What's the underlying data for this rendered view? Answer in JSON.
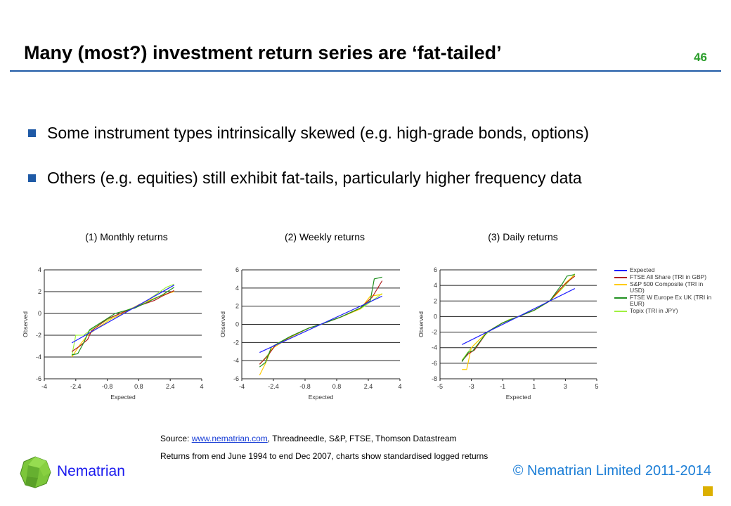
{
  "slide": {
    "title": "Many (most?) investment return series are ‘fat-tailed’",
    "page_number": "46",
    "bullets": [
      "Some instrument types intrinsically skewed (e.g. high-grade bonds, options)",
      "Others (e.g. equities) still exhibit fat-tails, particularly higher frequency data"
    ],
    "source_prefix": "Source: ",
    "source_link": "www.nematrian.com",
    "source_rest": ", Threadneedle, S&P, FTSE, Thomson Datastream",
    "note": "Returns from end June 1994 to end Dec 2007, charts show standardised logged returns",
    "brand": "Nematrian",
    "copyright": "© Nematrian Limited 2011-2014"
  },
  "colors": {
    "accent": "#1f5aa6",
    "Expected": "#2020ff",
    "FTSE All Share (TRI in GBP)": "#b02020",
    "S&P 500 Composite (TRI in USD)": "#ffcc00",
    "FTSE W Europe Ex UK (TRI in EUR)": "#209020",
    "Topix (TRI in JPY)": "#a0f040"
  },
  "chart_data": [
    {
      "type": "line",
      "title": "(1) Monthly returns",
      "xlabel": "Expected",
      "ylabel": "Observed",
      "xlim": [
        -4,
        4
      ],
      "ylim": [
        -6,
        4
      ],
      "xticks": [
        "-4",
        "-2.4",
        "-0.8",
        "0.8",
        "2.4",
        "4"
      ],
      "yticks": [
        "-6",
        "-4",
        "-2",
        "0",
        "2",
        "4"
      ],
      "series": [
        {
          "name": "Expected",
          "points": [
            [
              -2.6,
              -2.7
            ],
            [
              2.6,
              2.6
            ]
          ]
        },
        {
          "name": "FTSE All Share (TRI in GBP)",
          "points": [
            [
              -2.6,
              -3.5
            ],
            [
              -2.2,
              -3
            ],
            [
              -1.8,
              -2.4
            ],
            [
              -1.6,
              -1.6
            ],
            [
              -0.8,
              -0.5
            ],
            [
              0,
              0.1
            ],
            [
              0.8,
              0.7
            ],
            [
              1.6,
              1.2
            ],
            [
              2,
              1.6
            ],
            [
              2.6,
              2.1
            ]
          ]
        },
        {
          "name": "S&P 500 Composite (TRI in USD)",
          "points": [
            [
              -2.6,
              -4
            ],
            [
              -2.2,
              -2.9
            ],
            [
              -1.8,
              -2
            ],
            [
              -1.2,
              -1.2
            ],
            [
              -0.6,
              -0.5
            ],
            [
              0,
              0
            ],
            [
              0.8,
              0.8
            ],
            [
              1.6,
              1.4
            ],
            [
              2.2,
              1.8
            ],
            [
              2.6,
              2
            ]
          ]
        },
        {
          "name": "FTSE W Europe Ex UK (TRI in EUR)",
          "points": [
            [
              -2.6,
              -3.8
            ],
            [
              -2.3,
              -3.7
            ],
            [
              -2,
              -2.7
            ],
            [
              -1.7,
              -1.5
            ],
            [
              -1,
              -0.7
            ],
            [
              -0.4,
              0
            ],
            [
              0.6,
              0.5
            ],
            [
              1.2,
              1
            ],
            [
              2,
              1.7
            ],
            [
              2.6,
              2.4
            ]
          ]
        },
        {
          "name": "Topix (TRI in JPY)",
          "points": [
            [
              -2.6,
              -3.9
            ],
            [
              -2.4,
              -2
            ],
            [
              -2,
              -2
            ],
            [
              -1.4,
              -1.2
            ],
            [
              -0.6,
              -0.4
            ],
            [
              0.2,
              0.3
            ],
            [
              1,
              0.9
            ],
            [
              2.2,
              2.4
            ],
            [
              2.6,
              2.7
            ]
          ]
        }
      ]
    },
    {
      "type": "line",
      "title": "(2) Weekly returns",
      "xlabel": "Expected",
      "ylabel": "Observed",
      "xlim": [
        -4,
        4
      ],
      "ylim": [
        -6,
        6
      ],
      "xticks": [
        "-4",
        "-2.4",
        "-0.8",
        "0.8",
        "2.4",
        "4"
      ],
      "yticks": [
        "-6",
        "-4",
        "-2",
        "0",
        "2",
        "4",
        "6"
      ],
      "series": [
        {
          "name": "Expected",
          "points": [
            [
              -3.1,
              -3.1
            ],
            [
              3.1,
              3.1
            ]
          ]
        },
        {
          "name": "FTSE All Share (TRI in GBP)",
          "points": [
            [
              -3.1,
              -4.4
            ],
            [
              -2.7,
              -3.5
            ],
            [
              -2.3,
              -2.3
            ],
            [
              -1.5,
              -1.3
            ],
            [
              -0.6,
              -0.4
            ],
            [
              0,
              0
            ],
            [
              1,
              0.8
            ],
            [
              2,
              1.8
            ],
            [
              2.6,
              3
            ],
            [
              3.1,
              4.8
            ]
          ]
        },
        {
          "name": "S&P 500 Composite (TRI in USD)",
          "points": [
            [
              -3.1,
              -5.6
            ],
            [
              -2.8,
              -4.3
            ],
            [
              -2.5,
              -2.7
            ],
            [
              -1.6,
              -1.5
            ],
            [
              -0.6,
              -0.4
            ],
            [
              0,
              0
            ],
            [
              1,
              0.8
            ],
            [
              2,
              1.7
            ],
            [
              2.5,
              3.1
            ],
            [
              3.1,
              3.3
            ]
          ]
        },
        {
          "name": "FTSE W Europe Ex UK (TRI in EUR)",
          "points": [
            [
              -3.1,
              -4.7
            ],
            [
              -2.8,
              -4.2
            ],
            [
              -2.5,
              -2.5
            ],
            [
              -1.6,
              -1.4
            ],
            [
              -0.6,
              -0.4
            ],
            [
              0,
              0
            ],
            [
              1,
              0.8
            ],
            [
              2,
              1.8
            ],
            [
              2.5,
              2.6
            ],
            [
              2.7,
              5
            ],
            [
              3.1,
              5.2
            ]
          ]
        },
        {
          "name": "Topix (TRI in JPY)",
          "points": [
            [
              -3.1,
              -4.4
            ],
            [
              -2.7,
              -3.4
            ],
            [
              -2.2,
              -2.1
            ],
            [
              -1.5,
              -1.3
            ],
            [
              -0.6,
              -0.4
            ],
            [
              0,
              0
            ],
            [
              1,
              0.8
            ],
            [
              2,
              1.7
            ],
            [
              2.6,
              2.6
            ],
            [
              3.1,
              3.4
            ]
          ]
        }
      ]
    },
    {
      "type": "line",
      "title": "(3) Daily returns",
      "xlabel": "Expected",
      "ylabel": "Observed",
      "xlim": [
        -5,
        5
      ],
      "ylim": [
        -8,
        6
      ],
      "xticks": [
        "-5",
        "-3",
        "-1",
        "1",
        "3",
        "5"
      ],
      "yticks": [
        "-8",
        "-6",
        "-4",
        "-2",
        "0",
        "2",
        "4",
        "6"
      ],
      "series": [
        {
          "name": "Expected",
          "points": [
            [
              -3.6,
              -3.6
            ],
            [
              3.6,
              3.6
            ]
          ]
        },
        {
          "name": "FTSE All Share (TRI in GBP)",
          "points": [
            [
              -3.6,
              -5.7
            ],
            [
              -3.2,
              -4.8
            ],
            [
              -2.8,
              -4.3
            ],
            [
              -2,
              -2
            ],
            [
              -1,
              -0.8
            ],
            [
              0,
              0
            ],
            [
              1,
              0.8
            ],
            [
              2,
              2
            ],
            [
              2.7,
              3.6
            ],
            [
              3.1,
              4.4
            ],
            [
              3.6,
              5.2
            ]
          ]
        },
        {
          "name": "S&P 500 Composite (TRI in USD)",
          "points": [
            [
              -3.6,
              -6.8
            ],
            [
              -3.3,
              -6.8
            ],
            [
              -3,
              -4
            ],
            [
              -2,
              -2
            ],
            [
              -1,
              -0.8
            ],
            [
              0,
              0
            ],
            [
              1,
              0.8
            ],
            [
              2,
              2
            ],
            [
              2.5,
              3
            ],
            [
              3,
              4.3
            ],
            [
              3.6,
              5.4
            ]
          ]
        },
        {
          "name": "FTSE W Europe Ex UK (TRI in EUR)",
          "points": [
            [
              -3.6,
              -5.8
            ],
            [
              -3.2,
              -4.6
            ],
            [
              -2.9,
              -4.4
            ],
            [
              -2,
              -2
            ],
            [
              -1,
              -0.8
            ],
            [
              0,
              0
            ],
            [
              1,
              0.8
            ],
            [
              2,
              2
            ],
            [
              2.8,
              4.2
            ],
            [
              3.1,
              5.2
            ],
            [
              3.6,
              5.4
            ]
          ]
        },
        {
          "name": "Topix (TRI in JPY)",
          "points": [
            [
              -3.6,
              -5.6
            ],
            [
              -3,
              -4
            ],
            [
              -2.4,
              -2.8
            ],
            [
              -1.6,
              -1.5
            ],
            [
              -0.6,
              -0.4
            ],
            [
              0,
              0
            ],
            [
              1,
              0.8
            ],
            [
              2,
              2
            ],
            [
              2.8,
              3.6
            ],
            [
              3.2,
              4.5
            ],
            [
              3.6,
              5.5
            ]
          ]
        }
      ]
    }
  ]
}
